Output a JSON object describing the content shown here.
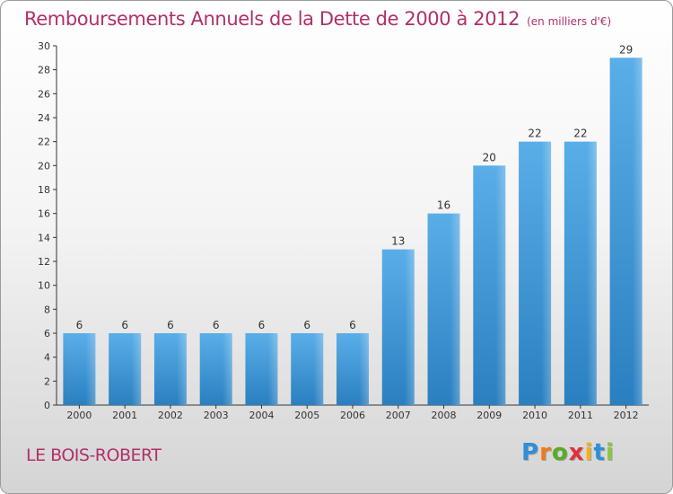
{
  "title": "Remboursements Annuels de la Dette de 2000 à 2012",
  "title_unit": "(en milliers d'€)",
  "commune": "LE BOIS-ROBERT",
  "logo": {
    "text": "Proxiti",
    "letters": [
      {
        "ch": "P",
        "color": "#2f8fd8"
      },
      {
        "ch": "r",
        "color": "#f07a1a"
      },
      {
        "ch": "o",
        "color": "#5aab2a"
      },
      {
        "ch": "x",
        "color": "#e03040"
      },
      {
        "ch": "i",
        "color": "#f0b020"
      },
      {
        "ch": "t",
        "color": "#2f8fd8"
      },
      {
        "ch": "i",
        "color": "#8cc63f"
      }
    ]
  },
  "colors": {
    "title": "#b0306a",
    "bar_top": "#5aaee8",
    "bar_bottom": "#2a7fc0",
    "axis": "#333333"
  },
  "chart_data": {
    "type": "bar",
    "title": "Remboursements Annuels de la Dette de 2000 à 2012",
    "ylabel": "",
    "xlabel": "",
    "categories": [
      "2000",
      "2001",
      "2002",
      "2003",
      "2004",
      "2005",
      "2006",
      "2007",
      "2008",
      "2009",
      "2010",
      "2011",
      "2012"
    ],
    "values": [
      6,
      6,
      6,
      6,
      6,
      6,
      6,
      13,
      16,
      20,
      22,
      22,
      29
    ],
    "ylim": [
      0,
      30
    ],
    "yticks": [
      0,
      2,
      4,
      6,
      8,
      10,
      12,
      14,
      16,
      18,
      20,
      22,
      24,
      26,
      28,
      30
    ],
    "grid": false,
    "legend": "none"
  }
}
